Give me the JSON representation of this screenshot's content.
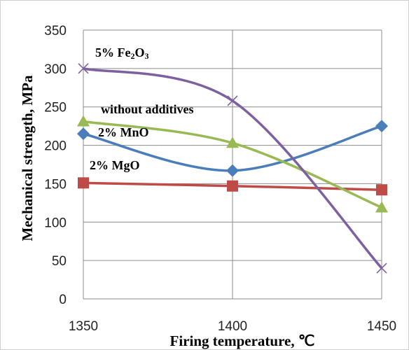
{
  "chart_data": {
    "type": "line",
    "title": "",
    "xlabel": "Firing temperature, ℃",
    "ylabel": "Mechanical strength, MPa",
    "x": [
      1350,
      1400,
      1450
    ],
    "xlim": [
      1350,
      1450
    ],
    "ylim": [
      0,
      350
    ],
    "x_ticks": [
      1350,
      1400,
      1450
    ],
    "y_ticks": [
      0,
      50,
      100,
      150,
      200,
      250,
      300,
      350
    ],
    "grid": "on",
    "legend": "none (inline labels)",
    "series": [
      {
        "name": "2% MnO",
        "values": [
          215,
          167,
          225
        ],
        "color": "#4a7ebb",
        "marker": "diamond"
      },
      {
        "name": "2% MgO",
        "values": [
          151,
          147,
          142
        ],
        "color": "#be4b48",
        "marker": "square"
      },
      {
        "name": "without additives",
        "values": [
          231,
          203,
          119
        ],
        "color": "#98b954",
        "marker": "triangle"
      },
      {
        "name": "5% Fe2O3",
        "values": [
          300,
          258,
          40
        ],
        "color": "#7d60a0",
        "marker": "x"
      }
    ],
    "annotations": [
      {
        "key": "fe",
        "text": "5% Fe",
        "sub": "2",
        "text2": "O",
        "sub2": "3"
      },
      {
        "key": "wa",
        "text": "without additives"
      },
      {
        "key": "mn",
        "text": "2% MnO"
      },
      {
        "key": "mg",
        "text": "2% MgO"
      }
    ]
  }
}
